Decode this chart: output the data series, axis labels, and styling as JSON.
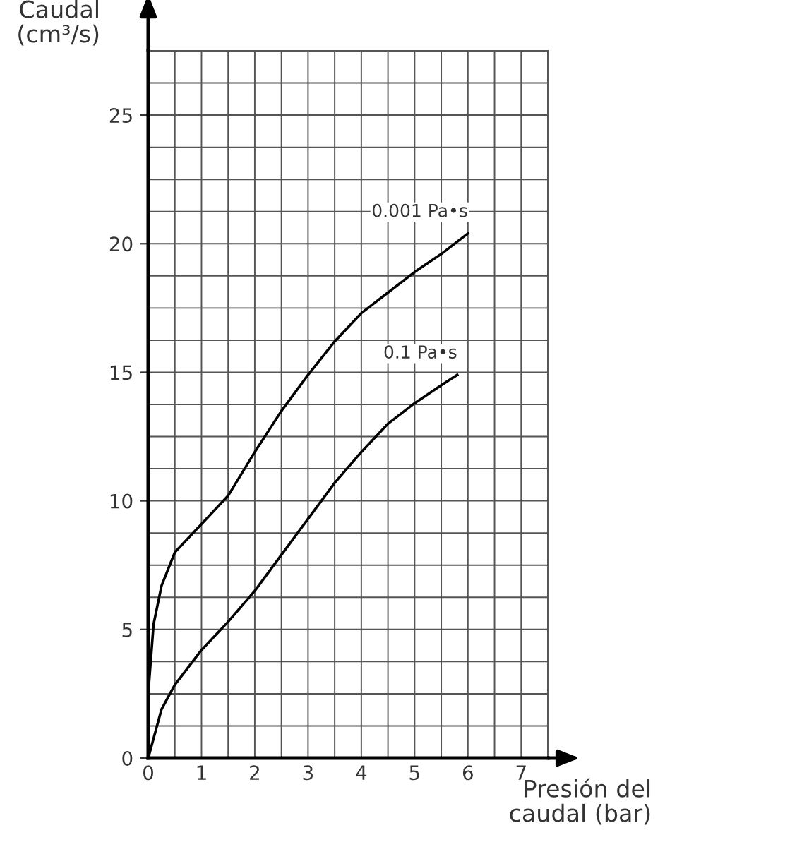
{
  "chart_data": {
    "type": "line",
    "xlabel": "Presión del\ncaudal (bar)",
    "ylabel": "Caudal\n(cm³/s)",
    "xlim": [
      0,
      7.5
    ],
    "ylim": [
      0,
      27.5
    ],
    "xticks": [
      0,
      1,
      2,
      3,
      4,
      5,
      6,
      7
    ],
    "yticks": [
      0,
      5,
      10,
      15,
      20,
      25
    ],
    "grid": true,
    "legend": false,
    "marker": "none",
    "line_style": "solid",
    "series": [
      {
        "name": "0.001 Pa•s",
        "color": "#000000",
        "x": [
          0,
          0.1,
          0.25,
          0.5,
          1,
          1.5,
          2,
          2.5,
          3,
          3.5,
          4,
          4.5,
          5,
          5.5,
          6
        ],
        "values": [
          2.5,
          5.2,
          6.7,
          8.0,
          9.1,
          10.2,
          11.9,
          13.5,
          14.9,
          16.2,
          17.3,
          18.1,
          18.9,
          19.6,
          20.4
        ]
      },
      {
        "name": "0.1 Pa•s",
        "color": "#000000",
        "x": [
          0,
          0.25,
          0.5,
          1,
          1.5,
          2,
          2.5,
          3,
          3.5,
          4,
          4.5,
          5,
          5.5,
          5.8
        ],
        "values": [
          0,
          1.9,
          2.85,
          4.2,
          5.3,
          6.5,
          7.9,
          9.3,
          10.7,
          11.9,
          13.0,
          13.8,
          14.5,
          14.9
        ]
      }
    ]
  }
}
